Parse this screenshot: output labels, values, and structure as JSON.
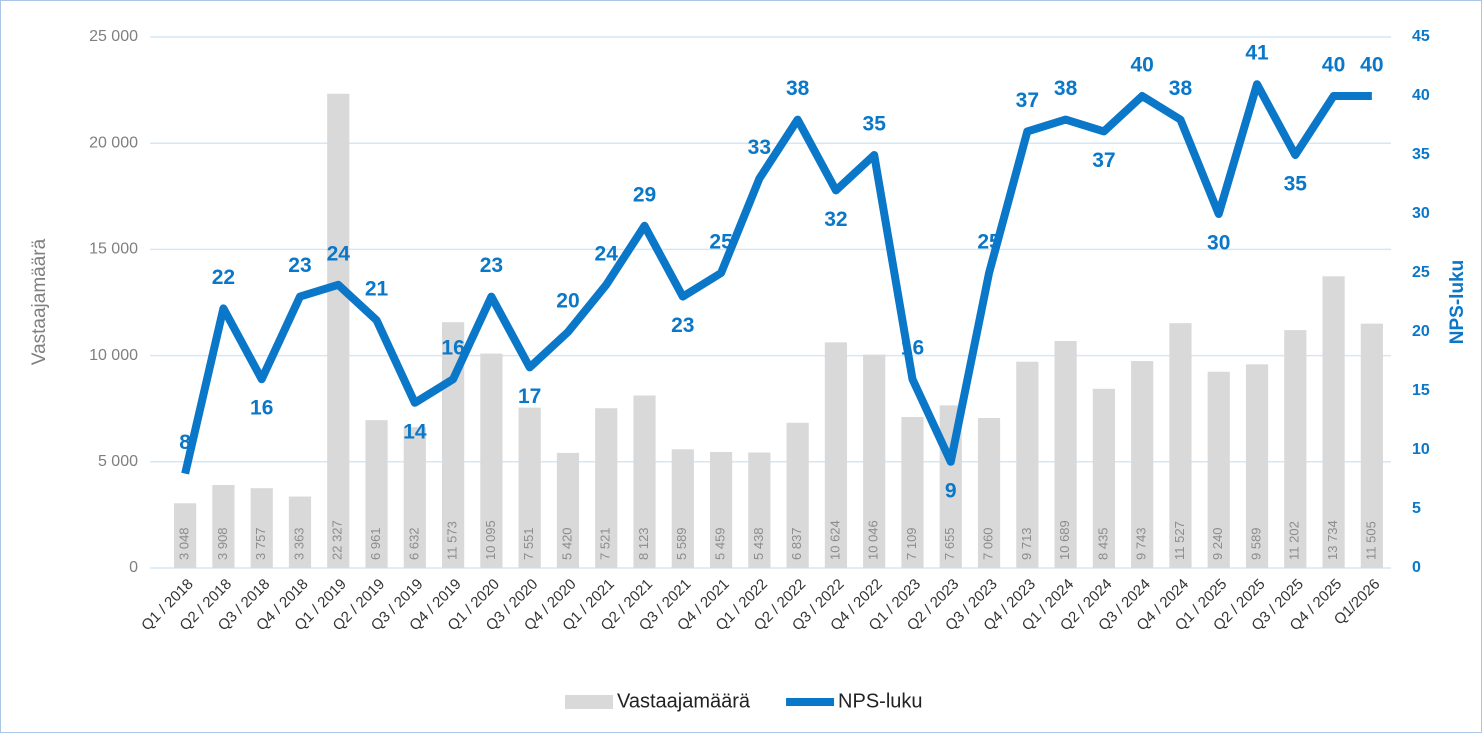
{
  "chart_data": {
    "type": "bar-line",
    "categories": [
      "Q1 / 2018",
      "Q2 / 2018",
      "Q3 / 2018",
      "Q4 / 2018",
      "Q1 / 2019",
      "Q2 / 2019",
      "Q3 / 2019",
      "Q4 / 2019",
      "Q1 / 2020",
      "Q3 / 2020",
      "Q4 / 2020",
      "Q1 / 2021",
      "Q2 / 2021",
      "Q3 / 2021",
      "Q4 / 2021",
      "Q1 / 2022",
      "Q2 / 2022",
      "Q3 / 2022",
      "Q4 / 2022",
      "Q1 / 2023",
      "Q2 / 2023",
      "Q3 / 2023",
      "Q4 / 2023",
      "Q1 / 2024",
      "Q2 / 2024",
      "Q3 / 2024",
      "Q4 / 2024",
      "Q1 / 2025",
      "Q2 / 2025",
      "Q3 / 2025",
      "Q4 / 2025",
      "Q1/2026"
    ],
    "series": [
      {
        "name": "Vastaajamäärä",
        "type": "bar",
        "color": "#d9d9d9",
        "values": [
          3048,
          3908,
          3757,
          3363,
          22327,
          6961,
          6632,
          11573,
          10095,
          7551,
          5420,
          7521,
          8123,
          5589,
          5459,
          5438,
          6837,
          10624,
          10046,
          7109,
          7655,
          7060,
          9713,
          10689,
          8435,
          9743,
          11527,
          9240,
          9589,
          11202,
          13734,
          11505
        ],
        "value_labels": [
          "3 048",
          "3 908",
          "3 757",
          "3 363",
          "22 327",
          "6 961",
          "6 632",
          "11 573",
          "10 095",
          "7 551",
          "5 420",
          "7 521",
          "8 123",
          "5 589",
          "5 459",
          "5 438",
          "6 837",
          "10 624",
          "10 046",
          "7 109",
          "7 655",
          "7 060",
          "9 713",
          "10 689",
          "8 435",
          "9 743",
          "11 527",
          "9 240",
          "9 589",
          "11 202",
          "13 734",
          "11 505"
        ]
      },
      {
        "name": "NPS-luku",
        "type": "line",
        "axis": "y2",
        "color": "#0a77c8",
        "values": [
          8,
          22,
          16,
          23,
          24,
          21,
          14,
          16,
          23,
          17,
          20,
          24,
          29,
          23,
          25,
          33,
          38,
          32,
          35,
          16,
          9,
          25,
          37,
          38,
          37,
          40,
          38,
          30,
          41,
          35,
          40,
          40
        ]
      }
    ],
    "ylabel": "Vastaajamäärä",
    "y2label": "NPS-luku",
    "ylim": [
      0,
      25000
    ],
    "yticks": [
      0,
      {
        "value": 5000,
        "label": "5 000"
      },
      {
        "value": 10000,
        "label": "10 000"
      },
      {
        "value": 15000,
        "label": "15 000"
      },
      {
        "value": 20000,
        "label": "20 000"
      },
      {
        "value": 25000,
        "label": "25 000"
      }
    ],
    "y2lim": [
      0,
      45
    ],
    "y2ticks": [
      0,
      5,
      10,
      15,
      20,
      25,
      30,
      35,
      40,
      45
    ],
    "grid": true,
    "legend": "bottom"
  }
}
